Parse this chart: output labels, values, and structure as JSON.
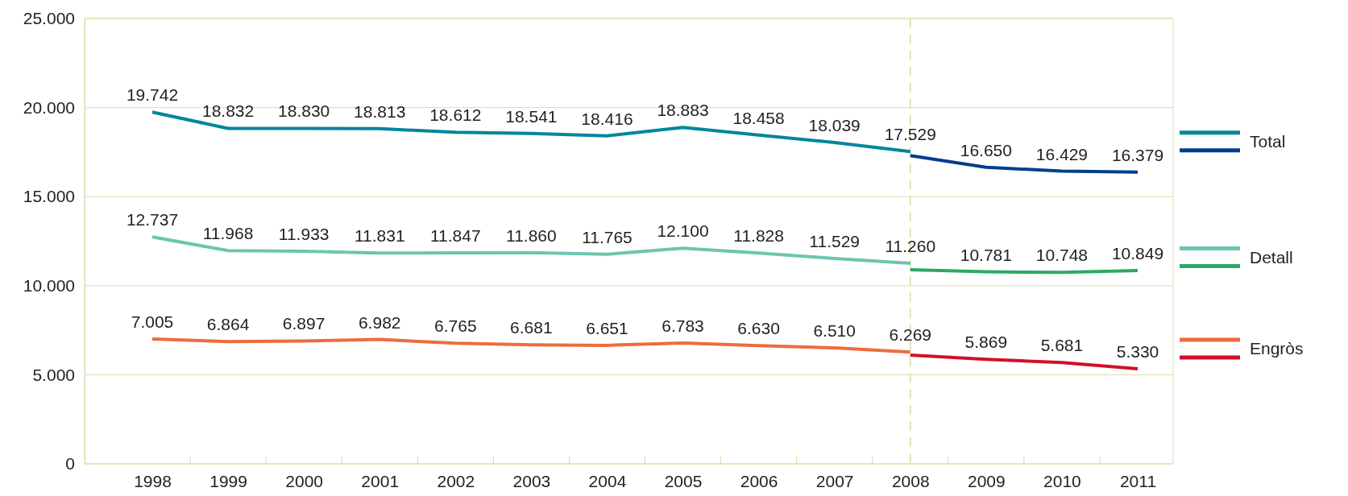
{
  "chart_data": {
    "type": "line",
    "categories": [
      "1998",
      "1999",
      "2000",
      "2001",
      "2002",
      "2003",
      "2004",
      "2005",
      "2006",
      "2007",
      "2008",
      "2009",
      "2010",
      "2011"
    ],
    "series": [
      {
        "name": "Total",
        "color": "#00869b",
        "values": [
          19742,
          18832,
          18830,
          18813,
          18612,
          18541,
          18416,
          18883,
          18458,
          18039,
          17529,
          null,
          null,
          null
        ],
        "value_labels": [
          "19.742",
          "18.832",
          "18.830",
          "18.813",
          "18.612",
          "18.541",
          "18.416",
          "18.883",
          "18.458",
          "18.039",
          "17.529",
          null,
          null,
          null
        ]
      },
      {
        "color": "#003f8a",
        "values": [
          null,
          null,
          null,
          null,
          null,
          null,
          null,
          null,
          null,
          null,
          17300,
          16650,
          16429,
          16379
        ],
        "value_labels": [
          null,
          null,
          null,
          null,
          null,
          null,
          null,
          null,
          null,
          null,
          null,
          "16.650",
          "16.429",
          "16.379"
        ]
      },
      {
        "name": "Detall",
        "color": "#6cc5b0",
        "values": [
          12737,
          11968,
          11933,
          11831,
          11847,
          11860,
          11765,
          12100,
          11828,
          11529,
          11260,
          null,
          null,
          null
        ],
        "value_labels": [
          "12.737",
          "11.968",
          "11.933",
          "11.831",
          "11.847",
          "11.860",
          "11.765",
          "12.100",
          "11.828",
          "11.529",
          "11.260",
          null,
          null,
          null
        ]
      },
      {
        "color": "#2ea866",
        "values": [
          null,
          null,
          null,
          null,
          null,
          null,
          null,
          null,
          null,
          null,
          10900,
          10781,
          10748,
          10849
        ],
        "value_labels": [
          null,
          null,
          null,
          null,
          null,
          null,
          null,
          null,
          null,
          null,
          null,
          "10.781",
          "10.748",
          "10.849"
        ]
      },
      {
        "name": "Engròs",
        "color": "#ee6c3c",
        "values": [
          7005,
          6864,
          6897,
          6982,
          6765,
          6681,
          6651,
          6783,
          6630,
          6510,
          6269,
          null,
          null,
          null
        ],
        "value_labels": [
          "7.005",
          "6.864",
          "6.897",
          "6.982",
          "6.765",
          "6.681",
          "6.651",
          "6.783",
          "6.630",
          "6.510",
          "6.269",
          null,
          null,
          null
        ]
      },
      {
        "color": "#d0102a",
        "values": [
          null,
          null,
          null,
          null,
          null,
          null,
          null,
          null,
          null,
          null,
          6100,
          5869,
          5681,
          5330
        ],
        "value_labels": [
          null,
          null,
          null,
          null,
          null,
          null,
          null,
          null,
          null,
          null,
          null,
          "5.869",
          "5.681",
          "5.330"
        ]
      }
    ],
    "ylim": [
      0,
      25000
    ],
    "yticks": [
      {
        "value": 0,
        "label": "0"
      },
      {
        "value": 5000,
        "label": "5.000"
      },
      {
        "value": 10000,
        "label": "10.000"
      },
      {
        "value": 15000,
        "label": "15.000"
      },
      {
        "value": 20000,
        "label": "20.000"
      },
      {
        "value": 25000,
        "label": "25.000"
      }
    ],
    "ref_lines": [
      {
        "axis": "x",
        "value": "2008",
        "color": "#d8dfa8",
        "line_style": "dashed"
      }
    ],
    "grid": "y",
    "legend": "right",
    "marker": "none",
    "line_style": "solid"
  }
}
